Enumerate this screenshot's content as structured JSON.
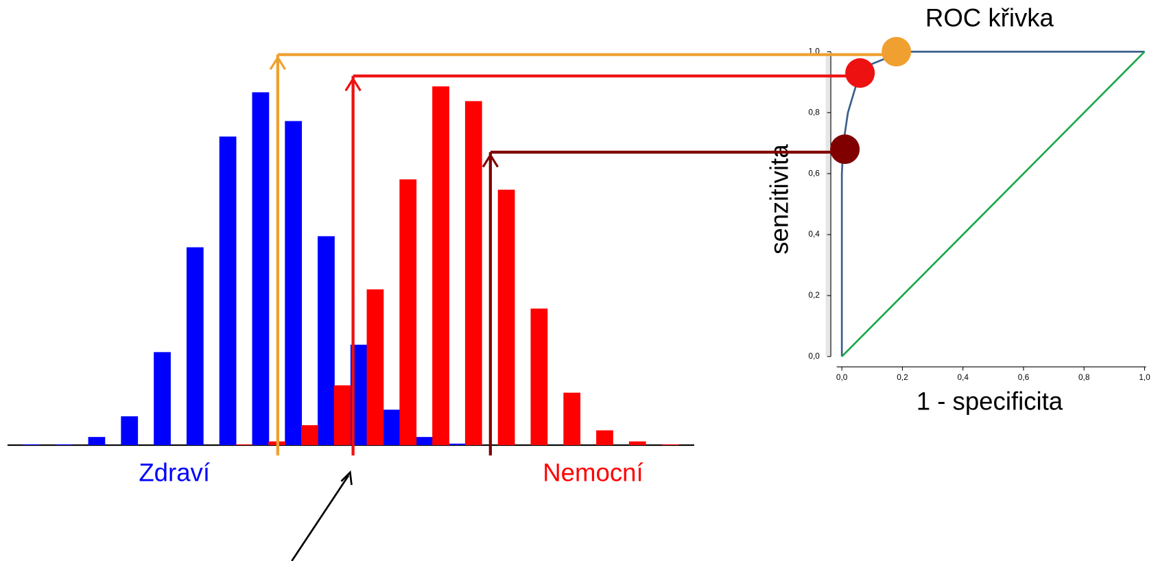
{
  "chart_data": [
    {
      "type": "bar",
      "series": [
        {
          "name": "Zdraví",
          "color": "#0000ff",
          "values": [
            1,
            1,
            11,
            39,
            126,
            268,
            418,
            478,
            439,
            283,
            136,
            48,
            11,
            2,
            0,
            0,
            0,
            0,
            0,
            0
          ]
        },
        {
          "name": "Nemocní",
          "color": "#ff0000",
          "values": [
            0,
            0,
            0,
            0,
            0,
            0,
            1,
            5,
            27,
            81,
            211,
            360,
            486,
            466,
            346,
            185,
            71,
            20,
            5,
            1
          ]
        }
      ]
    },
    {
      "type": "line",
      "title": "ROC křivka",
      "x_label": "1 - specificita",
      "y_label": "senzitivita",
      "xlim": [
        0,
        1
      ],
      "ylim": [
        0,
        1
      ],
      "xticks": [
        {
          "value": 0,
          "label": "0,0"
        },
        {
          "value": 0.2,
          "label": "0,2"
        },
        {
          "value": 0.4,
          "label": "0,4"
        },
        {
          "value": 0.6,
          "label": "0,6"
        },
        {
          "value": 0.8,
          "label": "0,8"
        },
        {
          "value": 1,
          "label": "1,0"
        }
      ],
      "yticks": [
        {
          "value": 0,
          "label": "0,0"
        },
        {
          "value": 0.2,
          "label": "0,2"
        },
        {
          "value": 0.4,
          "label": "0,4"
        },
        {
          "value": 0.6,
          "label": "0,6"
        },
        {
          "value": 0.8,
          "label": "0,8"
        },
        {
          "value": 1,
          "label": "1,0"
        }
      ],
      "series": [
        {
          "color": "#3a5f8a",
          "x": [
            0,
            0,
            0.005,
            0.02,
            0.05,
            0.1,
            0.2,
            1
          ],
          "values": [
            0,
            0.6,
            0.7,
            0.8,
            0.9,
            0.96,
            1,
            1
          ]
        },
        {
          "color": "#1aa84a",
          "x": [
            0,
            1
          ],
          "values": [
            0,
            1
          ]
        }
      ],
      "points": [
        {
          "color": "#f0a030",
          "x": 0.18,
          "y": 1.0
        },
        {
          "color": "#ee1111",
          "x": 0.06,
          "y": 0.93
        },
        {
          "color": "#800000",
          "x": 0.01,
          "y": 0.68
        }
      ]
    }
  ]
}
